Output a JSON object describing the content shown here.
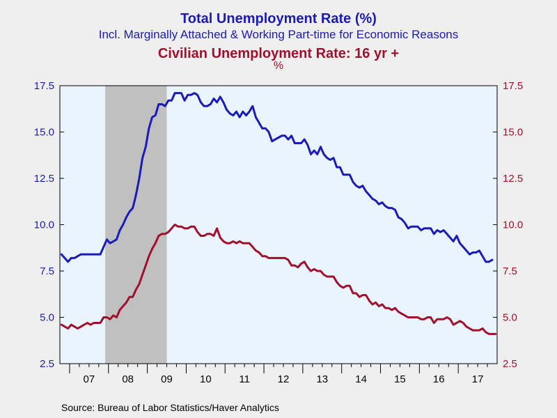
{
  "titles": {
    "line1": "Total Unemployment Rate (%)",
    "line2": "Incl. Marginally Attached & Working Part-time for Economic Reasons",
    "line3": "Civilian Unemployment Rate: 16 yr +",
    "line4": "%"
  },
  "source": "Source:  Bureau of Labor Statistics/Haver Analytics",
  "colors": {
    "series1": "#1a1ab8",
    "series2": "#a0102c",
    "plot_bg": "#eaf4fe",
    "recession": "#c0c0c0",
    "page_bg": "#efefef"
  },
  "chart_data": {
    "type": "line",
    "frequency": "monthly",
    "x_start": "2006-10",
    "x_end": "2017-12",
    "xticks": [
      "07",
      "08",
      "09",
      "10",
      "11",
      "12",
      "13",
      "14",
      "15",
      "16",
      "17"
    ],
    "ylim": [
      2.5,
      17.5
    ],
    "yticks_left": [
      "2.5",
      "5.0",
      "7.5",
      "10.0",
      "12.5",
      "15.0",
      "17.5"
    ],
    "yticks_right": [
      "2.5",
      "5.0",
      "7.5",
      "10.0",
      "12.5",
      "15.0",
      "17.5"
    ],
    "recession": {
      "start": "2007-12",
      "end": "2009-06"
    },
    "grid": false,
    "series": [
      {
        "axis": "left",
        "values": [
          8.4,
          8.2,
          8.0,
          8.2,
          8.2,
          8.3,
          8.4,
          8.4,
          8.4,
          8.4,
          8.4,
          8.4,
          8.4,
          8.8,
          9.2,
          9.0,
          9.1,
          9.2,
          9.7,
          10.0,
          10.4,
          10.7,
          10.9,
          11.6,
          12.5,
          13.6,
          14.2,
          15.2,
          15.8,
          15.9,
          16.5,
          16.5,
          16.4,
          16.7,
          16.7,
          17.1,
          17.1,
          17.1,
          16.7,
          17.0,
          17.0,
          17.1,
          17.0,
          16.6,
          16.4,
          16.4,
          16.5,
          16.8,
          16.6,
          16.9,
          16.6,
          16.2,
          16.0,
          15.9,
          16.1,
          15.8,
          16.1,
          15.9,
          16.1,
          16.4,
          15.8,
          15.5,
          15.2,
          15.2,
          15.0,
          14.5,
          14.6,
          14.7,
          14.8,
          14.8,
          14.6,
          14.8,
          14.4,
          14.4,
          14.4,
          14.6,
          14.3,
          13.8,
          14.0,
          13.8,
          14.2,
          13.8,
          13.6,
          13.5,
          13.6,
          13.1,
          13.1,
          12.7,
          12.7,
          12.7,
          12.3,
          12.1,
          12.0,
          12.1,
          11.8,
          11.6,
          11.4,
          11.3,
          11.1,
          11.2,
          11.0,
          10.9,
          10.9,
          10.8,
          10.4,
          10.3,
          10.1,
          9.8,
          9.9,
          9.9,
          9.9,
          9.7,
          9.8,
          9.8,
          9.8,
          9.5,
          9.7,
          9.6,
          9.7,
          9.5,
          9.3,
          9.1,
          9.4,
          9.0,
          8.8,
          8.6,
          8.4,
          8.5,
          8.5,
          8.6,
          8.3,
          8.0,
          8.0,
          8.1
        ]
      },
      {
        "axis": "right",
        "values": [
          4.6,
          4.5,
          4.4,
          4.6,
          4.5,
          4.4,
          4.5,
          4.6,
          4.7,
          4.6,
          4.7,
          4.7,
          4.7,
          5.0,
          5.0,
          4.9,
          5.1,
          5.0,
          5.4,
          5.6,
          5.8,
          6.1,
          6.1,
          6.5,
          6.8,
          7.3,
          7.8,
          8.3,
          8.7,
          9.0,
          9.4,
          9.5,
          9.5,
          9.6,
          9.8,
          10.0,
          9.9,
          9.9,
          9.8,
          9.8,
          9.9,
          9.9,
          9.6,
          9.4,
          9.4,
          9.5,
          9.5,
          9.4,
          9.8,
          9.3,
          9.1,
          9.0,
          9.0,
          9.1,
          9.0,
          9.1,
          9.0,
          9.0,
          9.0,
          8.8,
          8.6,
          8.5,
          8.3,
          8.3,
          8.2,
          8.2,
          8.2,
          8.2,
          8.2,
          8.2,
          8.1,
          7.8,
          7.8,
          7.7,
          7.9,
          8.0,
          7.7,
          7.5,
          7.6,
          7.5,
          7.5,
          7.3,
          7.2,
          7.2,
          7.2,
          6.9,
          6.7,
          6.6,
          6.7,
          6.7,
          6.3,
          6.3,
          6.1,
          6.2,
          6.2,
          5.9,
          5.7,
          5.8,
          5.6,
          5.7,
          5.5,
          5.5,
          5.4,
          5.5,
          5.3,
          5.2,
          5.1,
          5.0,
          5.0,
          5.0,
          5.0,
          4.9,
          4.9,
          5.0,
          5.0,
          4.7,
          4.9,
          4.9,
          4.9,
          5.0,
          4.9,
          4.6,
          4.7,
          4.8,
          4.7,
          4.5,
          4.4,
          4.3,
          4.3,
          4.3,
          4.4,
          4.2,
          4.1,
          4.1,
          4.1
        ]
      }
    ]
  }
}
